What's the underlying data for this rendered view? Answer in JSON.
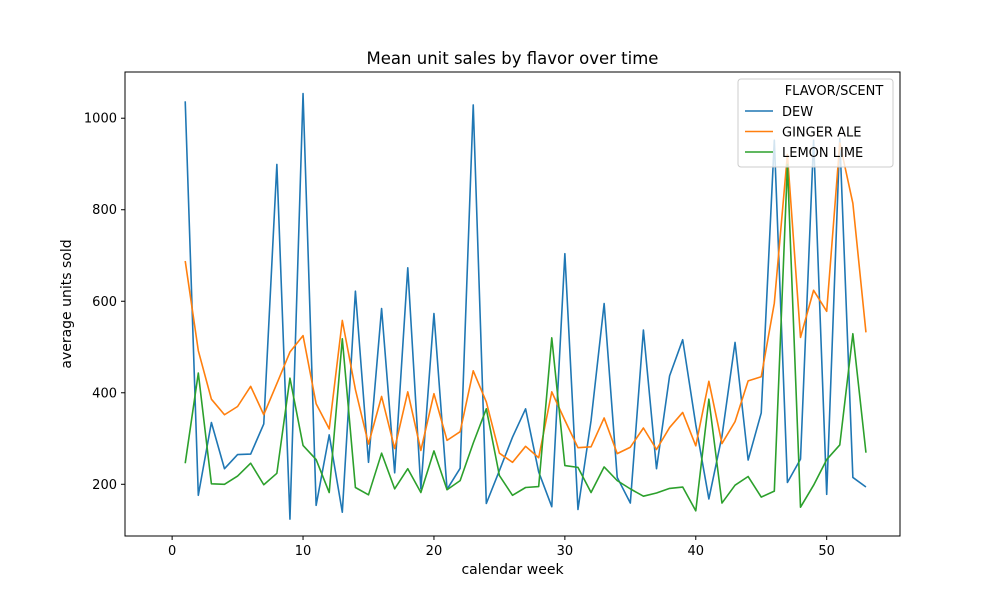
{
  "chart_data": {
    "type": "line",
    "title": "Mean unit sales by flavor over time",
    "xlabel": "calendar week",
    "ylabel": "average units sold",
    "xlim": [
      -3.6,
      55.6
    ],
    "ylim": [
      87,
      1101
    ],
    "xticks": [
      0,
      10,
      20,
      30,
      40,
      50
    ],
    "yticks": [
      200,
      400,
      600,
      800,
      1000
    ],
    "grid": false,
    "legend": {
      "title": "FLAVOR/SCENT",
      "placement": "top-right"
    },
    "x": [
      1,
      2,
      3,
      4,
      5,
      6,
      7,
      8,
      9,
      10,
      11,
      12,
      13,
      14,
      15,
      16,
      17,
      18,
      19,
      20,
      21,
      22,
      23,
      24,
      25,
      26,
      27,
      28,
      29,
      30,
      31,
      32,
      33,
      34,
      35,
      36,
      37,
      38,
      39,
      40,
      41,
      42,
      43,
      44,
      45,
      46,
      47,
      48,
      49,
      50,
      51,
      52,
      53
    ],
    "series": [
      {
        "name": "DEW",
        "color": "#1f77b4",
        "values": [
          1037,
          176,
          335,
          234,
          265,
          266,
          332,
          899,
          124,
          1054,
          154,
          308,
          139,
          622,
          248,
          584,
          225,
          673,
          190,
          573,
          189,
          235,
          1029,
          158,
          230,
          303,
          365,
          227,
          151,
          704,
          145,
          339,
          595,
          215,
          159,
          537,
          234,
          437,
          516,
          330,
          168,
          305,
          510,
          253,
          356,
          952,
          204,
          255,
          952,
          178,
          956,
          215,
          194
        ]
      },
      {
        "name": "GINGER ALE",
        "color": "#ff7f0e",
        "values": [
          688,
          492,
          386,
          352,
          370,
          414,
          352,
          420,
          489,
          525,
          376,
          321,
          558,
          407,
          288,
          392,
          278,
          402,
          274,
          398,
          296,
          315,
          448,
          380,
          268,
          248,
          283,
          258,
          402,
          340,
          280,
          282,
          345,
          267,
          281,
          323,
          276,
          324,
          357,
          284,
          425,
          289,
          337,
          426,
          435,
          596,
          921,
          521,
          624,
          578,
          946,
          814,
          532
        ]
      },
      {
        "name": "LEMON LIME",
        "color": "#2ca02c",
        "values": [
          246,
          443,
          201,
          200,
          218,
          246,
          199,
          224,
          432,
          285,
          254,
          182,
          518,
          193,
          177,
          268,
          190,
          234,
          182,
          273,
          188,
          208,
          290,
          365,
          219,
          176,
          193,
          195,
          520,
          241,
          237,
          182,
          238,
          208,
          190,
          174,
          181,
          191,
          194,
          142,
          386,
          159,
          198,
          217,
          172,
          185,
          899,
          150,
          198,
          254,
          286,
          529,
          269
        ]
      }
    ]
  }
}
